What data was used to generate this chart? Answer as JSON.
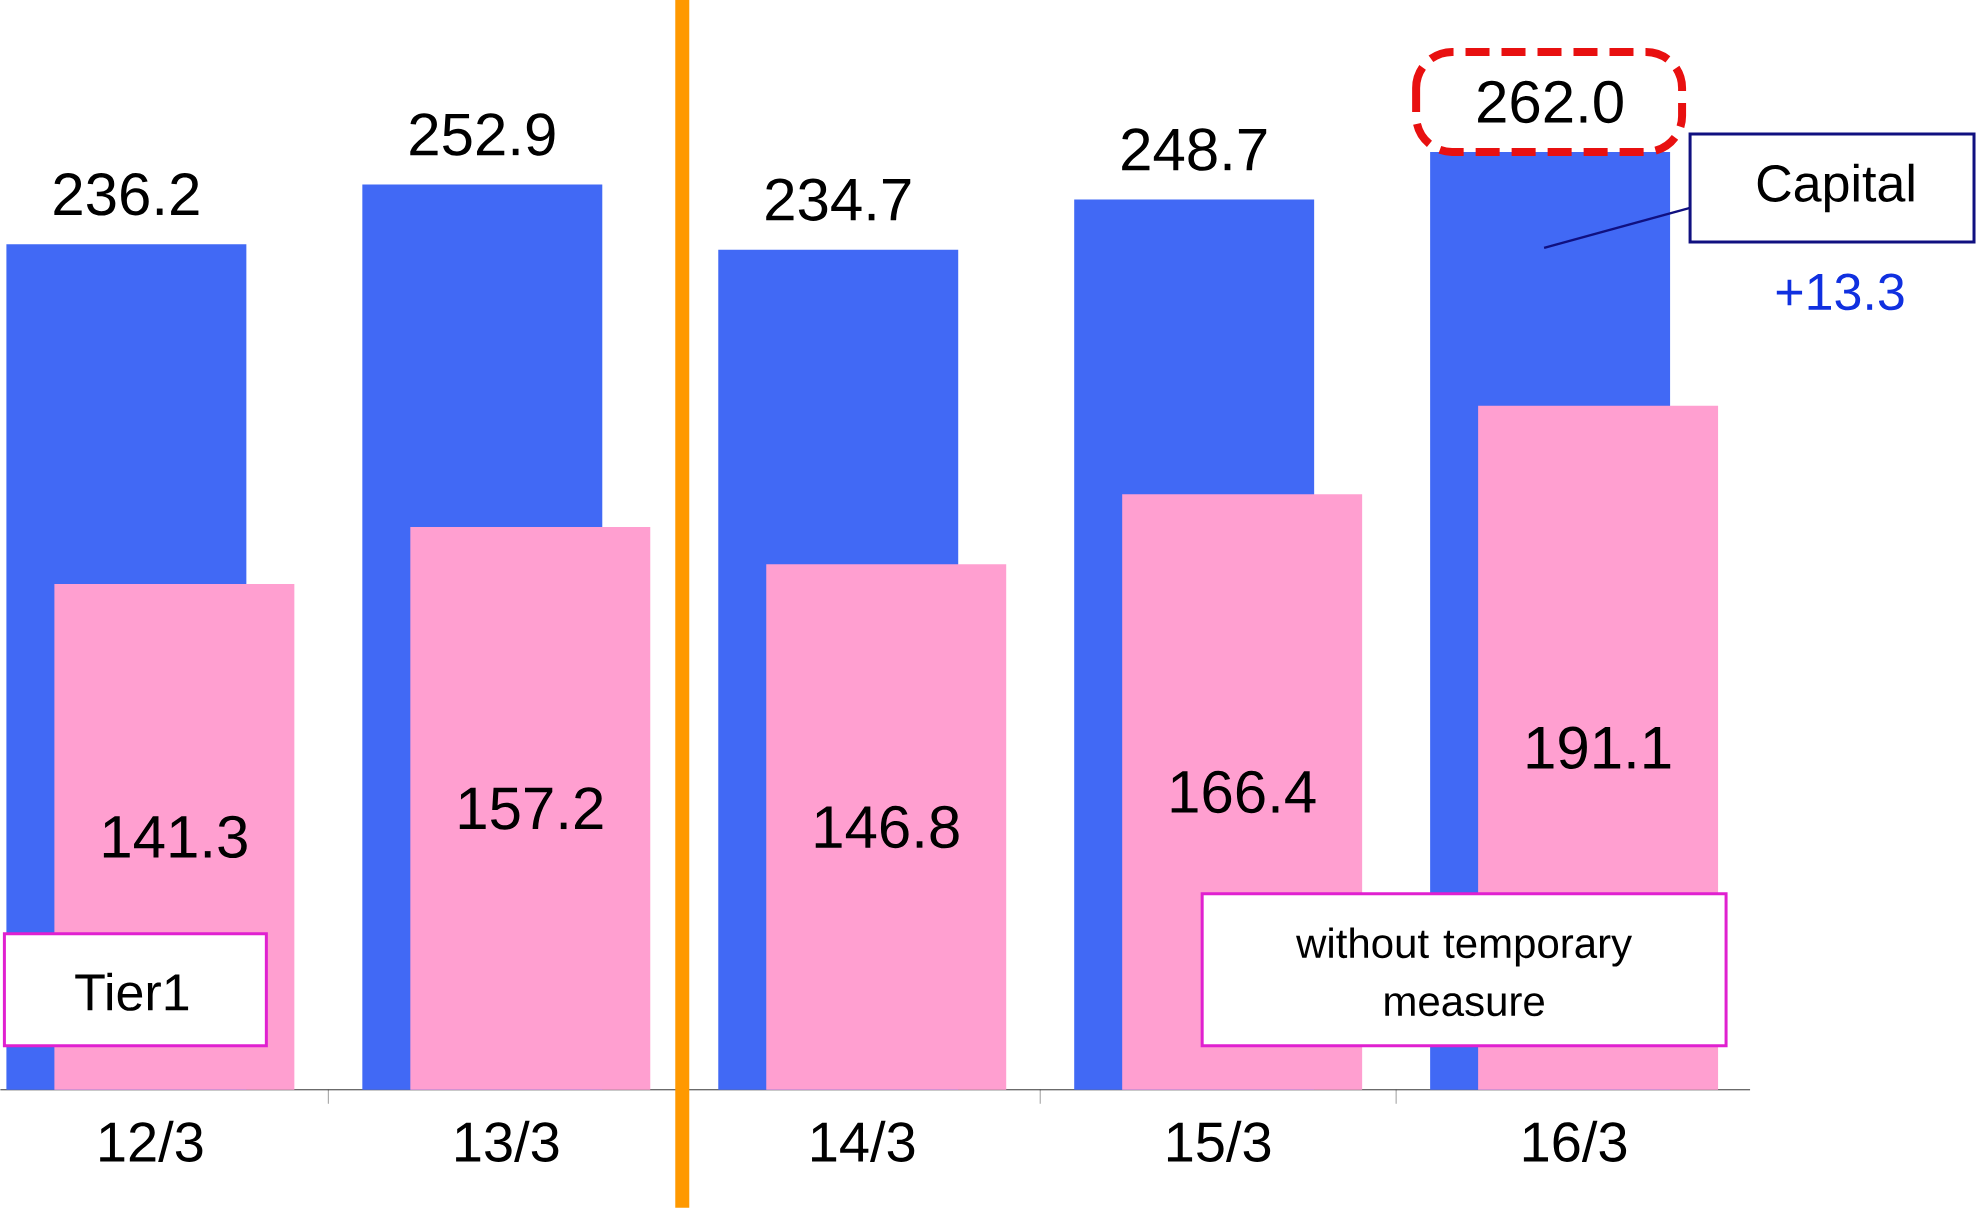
{
  "chart_data": {
    "type": "bar",
    "categories": [
      "12/3",
      "13/3",
      "14/3",
      "15/3",
      "16/3"
    ],
    "series": [
      {
        "name": "Capital",
        "color": "#4169f5",
        "values": [
          236.2,
          252.9,
          234.7,
          248.7,
          262.0
        ],
        "value_labels": [
          "236.2",
          "252.9",
          "234.7",
          "248.7",
          "262.0"
        ]
      },
      {
        "name": "Tier1",
        "color": "#ff9fd0",
        "values": [
          141.3,
          157.2,
          146.8,
          166.4,
          191.1
        ],
        "value_labels": [
          "141.3",
          "157.2",
          "146.8",
          "166.4",
          "191.1"
        ]
      }
    ],
    "legend": false,
    "grid": false,
    "annotations": [
      "without temporary measure",
      "+13.3"
    ]
  }
}
